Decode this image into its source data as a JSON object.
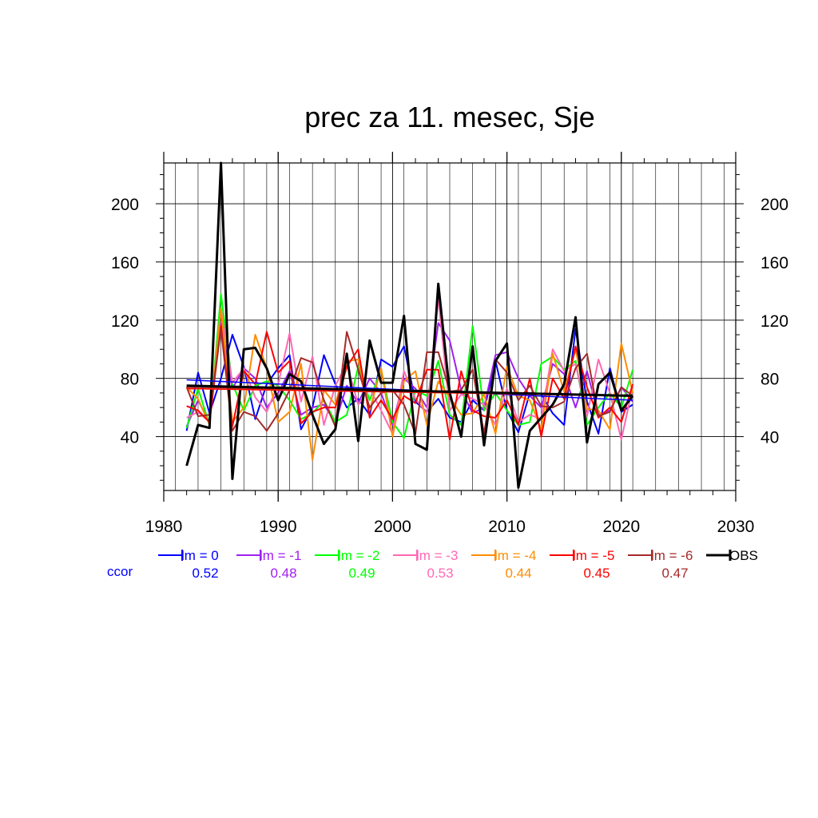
{
  "chart_data": {
    "type": "line",
    "title": "prec za 11. mesec, Sje",
    "xlabel": "",
    "ylabel": "",
    "xlim": [
      1980,
      2030
    ],
    "ylim": [
      3,
      228
    ],
    "x_ticks": [
      1980,
      1990,
      2000,
      2010,
      2020,
      2030
    ],
    "y_ticks": [
      40,
      80,
      120,
      160,
      200
    ],
    "grid": true,
    "legend_position": "below",
    "ccor_label": "ccor",
    "ccor_color": "#0000ff",
    "x": [
      1982,
      1983,
      1984,
      1985,
      1986,
      1987,
      1988,
      1989,
      1990,
      1991,
      1992,
      1993,
      1994,
      1995,
      1996,
      1997,
      1998,
      1999,
      2000,
      2001,
      2002,
      2003,
      2004,
      2005,
      2006,
      2007,
      2008,
      2009,
      2010,
      2011,
      2012,
      2013,
      2014,
      2015,
      2016,
      2017,
      2018,
      2019,
      2020,
      2021
    ],
    "series": [
      {
        "name": "lm = 0",
        "ccor": "0.52",
        "color": "#0000ff",
        "width": 2,
        "values": [
          44,
          84,
          56,
          80,
          110,
          88,
          52,
          76,
          87,
          96,
          45,
          60,
          96,
          76,
          60,
          66,
          55,
          93,
          88,
          102,
          64,
          57,
          66,
          53,
          50,
          65,
          58,
          92,
          58,
          43,
          70,
          69,
          56,
          48,
          114,
          64,
          42,
          87,
          57,
          62
        ],
        "trend": [
          79,
          65
        ]
      },
      {
        "name": "lm = -1",
        "ccor": "0.48",
        "color": "#a020f0",
        "width": 2,
        "values": [
          47,
          65,
          50,
          118,
          73,
          87,
          80,
          60,
          70,
          85,
          55,
          60,
          62,
          50,
          75,
          63,
          80,
          70,
          48,
          80,
          73,
          60,
          118,
          106,
          72,
          56,
          60,
          96,
          98,
          80,
          68,
          60,
          90,
          83,
          60,
          85,
          55,
          58,
          74,
          64
        ],
        "trend": [
          75,
          68
        ]
      },
      {
        "name": "lm = -2",
        "ccor": "0.49",
        "color": "#00ff00",
        "width": 2,
        "values": [
          46,
          73,
          48,
          138,
          76,
          58,
          75,
          78,
          75,
          65,
          52,
          56,
          65,
          50,
          55,
          88,
          65,
          86,
          50,
          39,
          72,
          68,
          92,
          55,
          48,
          116,
          58,
          70,
          58,
          48,
          50,
          90,
          95,
          86,
          92,
          48,
          60,
          70,
          60,
          86
        ],
        "trend": [
          75,
          68
        ]
      },
      {
        "name": "lm = -3",
        "ccor": "0.53",
        "color": "#ff69b4",
        "width": 2,
        "values": [
          53,
          57,
          50,
          128,
          77,
          87,
          67,
          57,
          76,
          111,
          64,
          95,
          48,
          75,
          90,
          62,
          73,
          58,
          42,
          85,
          66,
          56,
          135,
          58,
          69,
          66,
          62,
          48,
          73,
          50,
          55,
          52,
          100,
          85,
          90,
          54,
          93,
          70,
          38,
          74
        ],
        "trend": [
          73,
          68
        ]
      },
      {
        "name": "lm = -4",
        "ccor": "0.44",
        "color": "#ff8c00",
        "width": 2,
        "values": [
          74,
          66,
          48,
          128,
          50,
          60,
          110,
          87,
          50,
          57,
          90,
          24,
          72,
          62,
          92,
          93,
          58,
          87,
          40,
          78,
          85,
          48,
          78,
          67,
          55,
          56,
          69,
          42,
          88,
          68,
          65,
          45,
          97,
          71,
          100,
          59,
          58,
          45,
          104,
          70
        ],
        "trend": [
          73,
          68
        ]
      },
      {
        "name": "lm = -5",
        "ccor": "0.45",
        "color": "#ff0000",
        "width": 2,
        "values": [
          61,
          58,
          50,
          116,
          47,
          85,
          76,
          112,
          84,
          92,
          49,
          57,
          60,
          60,
          88,
          100,
          53,
          65,
          52,
          68,
          63,
          86,
          86,
          38,
          85,
          58,
          54,
          53,
          65,
          48,
          80,
          40,
          80,
          66,
          102,
          74,
          53,
          60,
          50,
          76
        ],
        "trend": [
          73,
          68
        ]
      },
      {
        "name": "lm = -6",
        "ccor": "0.47",
        "color": "#a52a2a",
        "width": 2,
        "values": [
          74,
          54,
          55,
          114,
          44,
          57,
          54,
          44,
          56,
          72,
          94,
          91,
          65,
          47,
          112,
          86,
          60,
          70,
          72,
          62,
          42,
          98,
          98,
          71,
          72,
          86,
          42,
          93,
          84,
          65,
          75,
          61,
          60,
          64,
          87,
          97,
          54,
          57,
          74,
          68
        ],
        "trend": [
          74,
          68
        ]
      },
      {
        "name": "OBS",
        "ccor": "",
        "color": "#000000",
        "width": 3,
        "values": [
          20,
          48,
          46,
          228,
          11,
          100,
          101,
          87,
          65,
          83,
          78,
          55,
          35,
          45,
          97,
          37,
          106,
          77,
          77,
          123,
          35,
          31,
          145,
          70,
          40,
          102,
          34,
          92,
          104,
          5,
          44,
          53,
          62,
          76,
          122,
          36,
          76,
          84,
          58,
          68
        ],
        "trend": [
          75,
          68
        ]
      }
    ]
  }
}
